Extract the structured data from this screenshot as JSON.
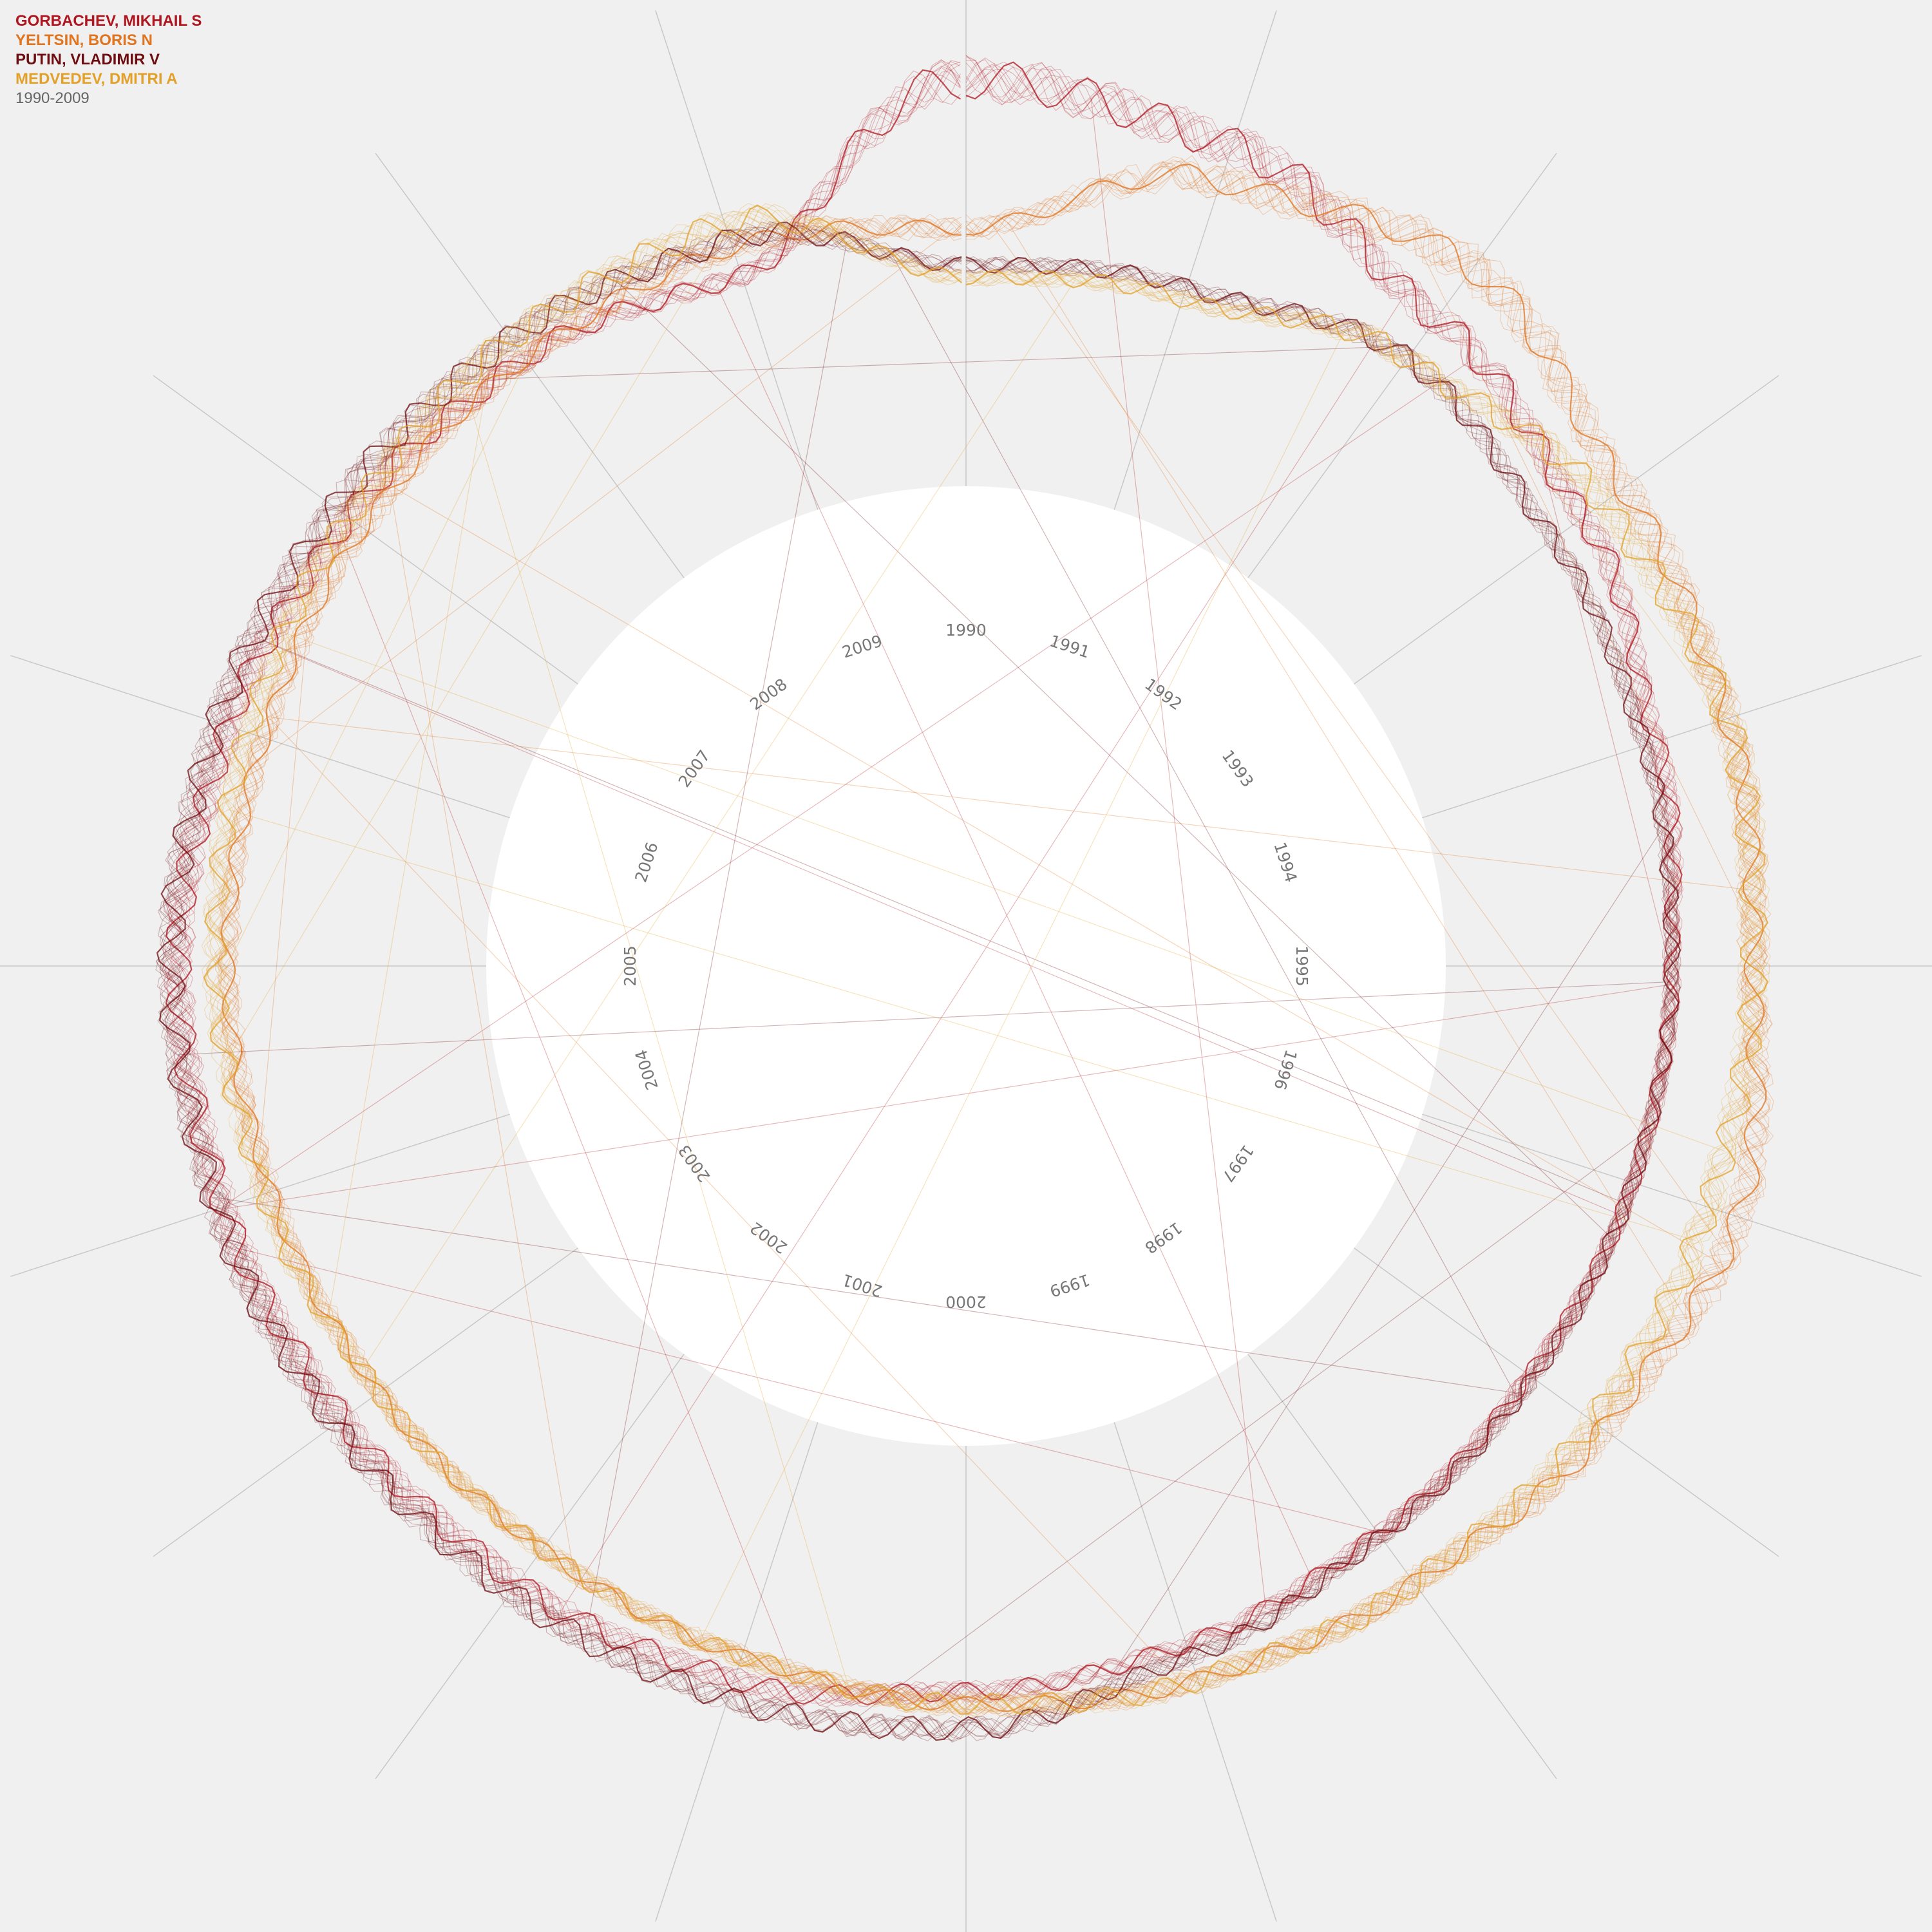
{
  "legend": {
    "series": [
      {
        "name": "GORBACHEV, MIKHAIL S",
        "color": "#b0161f"
      },
      {
        "name": "YELTSIN, BORIS N",
        "color": "#e0741f"
      },
      {
        "name": "PUTIN, VLADIMIR V",
        "color": "#6d0d12"
      },
      {
        "name": "MEDVEDEV, DMITRI A",
        "color": "#e3a12a"
      }
    ],
    "period": "1990-2009"
  },
  "chart_data": {
    "type": "line",
    "subtype": "radial",
    "x": [
      1990,
      1991,
      1992,
      1993,
      1994,
      1995,
      1996,
      1997,
      1998,
      1999,
      2000,
      2001,
      2002,
      2003,
      2004,
      2005,
      2006,
      2007,
      2008,
      2009
    ],
    "series": [
      {
        "name": "GORBACHEV, MIKHAIL S",
        "color": "#b0161f",
        "values": [
          0.85,
          0.75,
          0.5,
          0.35,
          0.2,
          0.12,
          0.1,
          0.08,
          0.1,
          0.15,
          0.2,
          0.3,
          0.35,
          0.38,
          0.42,
          0.45,
          0.4,
          0.35,
          0.3,
          0.2
        ]
      },
      {
        "name": "YELTSIN, BORIS N",
        "color": "#e0741f",
        "values": [
          0.25,
          0.6,
          0.75,
          0.55,
          0.5,
          0.45,
          0.55,
          0.45,
          0.35,
          0.3,
          0.25,
          0.2,
          0.18,
          0.2,
          0.22,
          0.25,
          0.25,
          0.28,
          0.3,
          0.32
        ]
      },
      {
        "name": "PUTIN, VLADIMIR V",
        "color": "#6d0d12",
        "values": [
          0.1,
          0.15,
          0.3,
          0.2,
          0.15,
          0.12,
          0.1,
          0.1,
          0.12,
          0.2,
          0.35,
          0.38,
          0.4,
          0.42,
          0.45,
          0.48,
          0.45,
          0.42,
          0.4,
          0.35
        ]
      },
      {
        "name": "MEDVEDEV, DMITRI A",
        "color": "#e3a12a",
        "values": [
          0.05,
          0.1,
          0.3,
          0.45,
          0.5,
          0.45,
          0.42,
          0.4,
          0.35,
          0.3,
          0.25,
          0.2,
          0.18,
          0.2,
          0.25,
          0.3,
          0.32,
          0.35,
          0.4,
          0.42
        ]
      }
    ],
    "grid": true,
    "legend_position": "top-left"
  }
}
